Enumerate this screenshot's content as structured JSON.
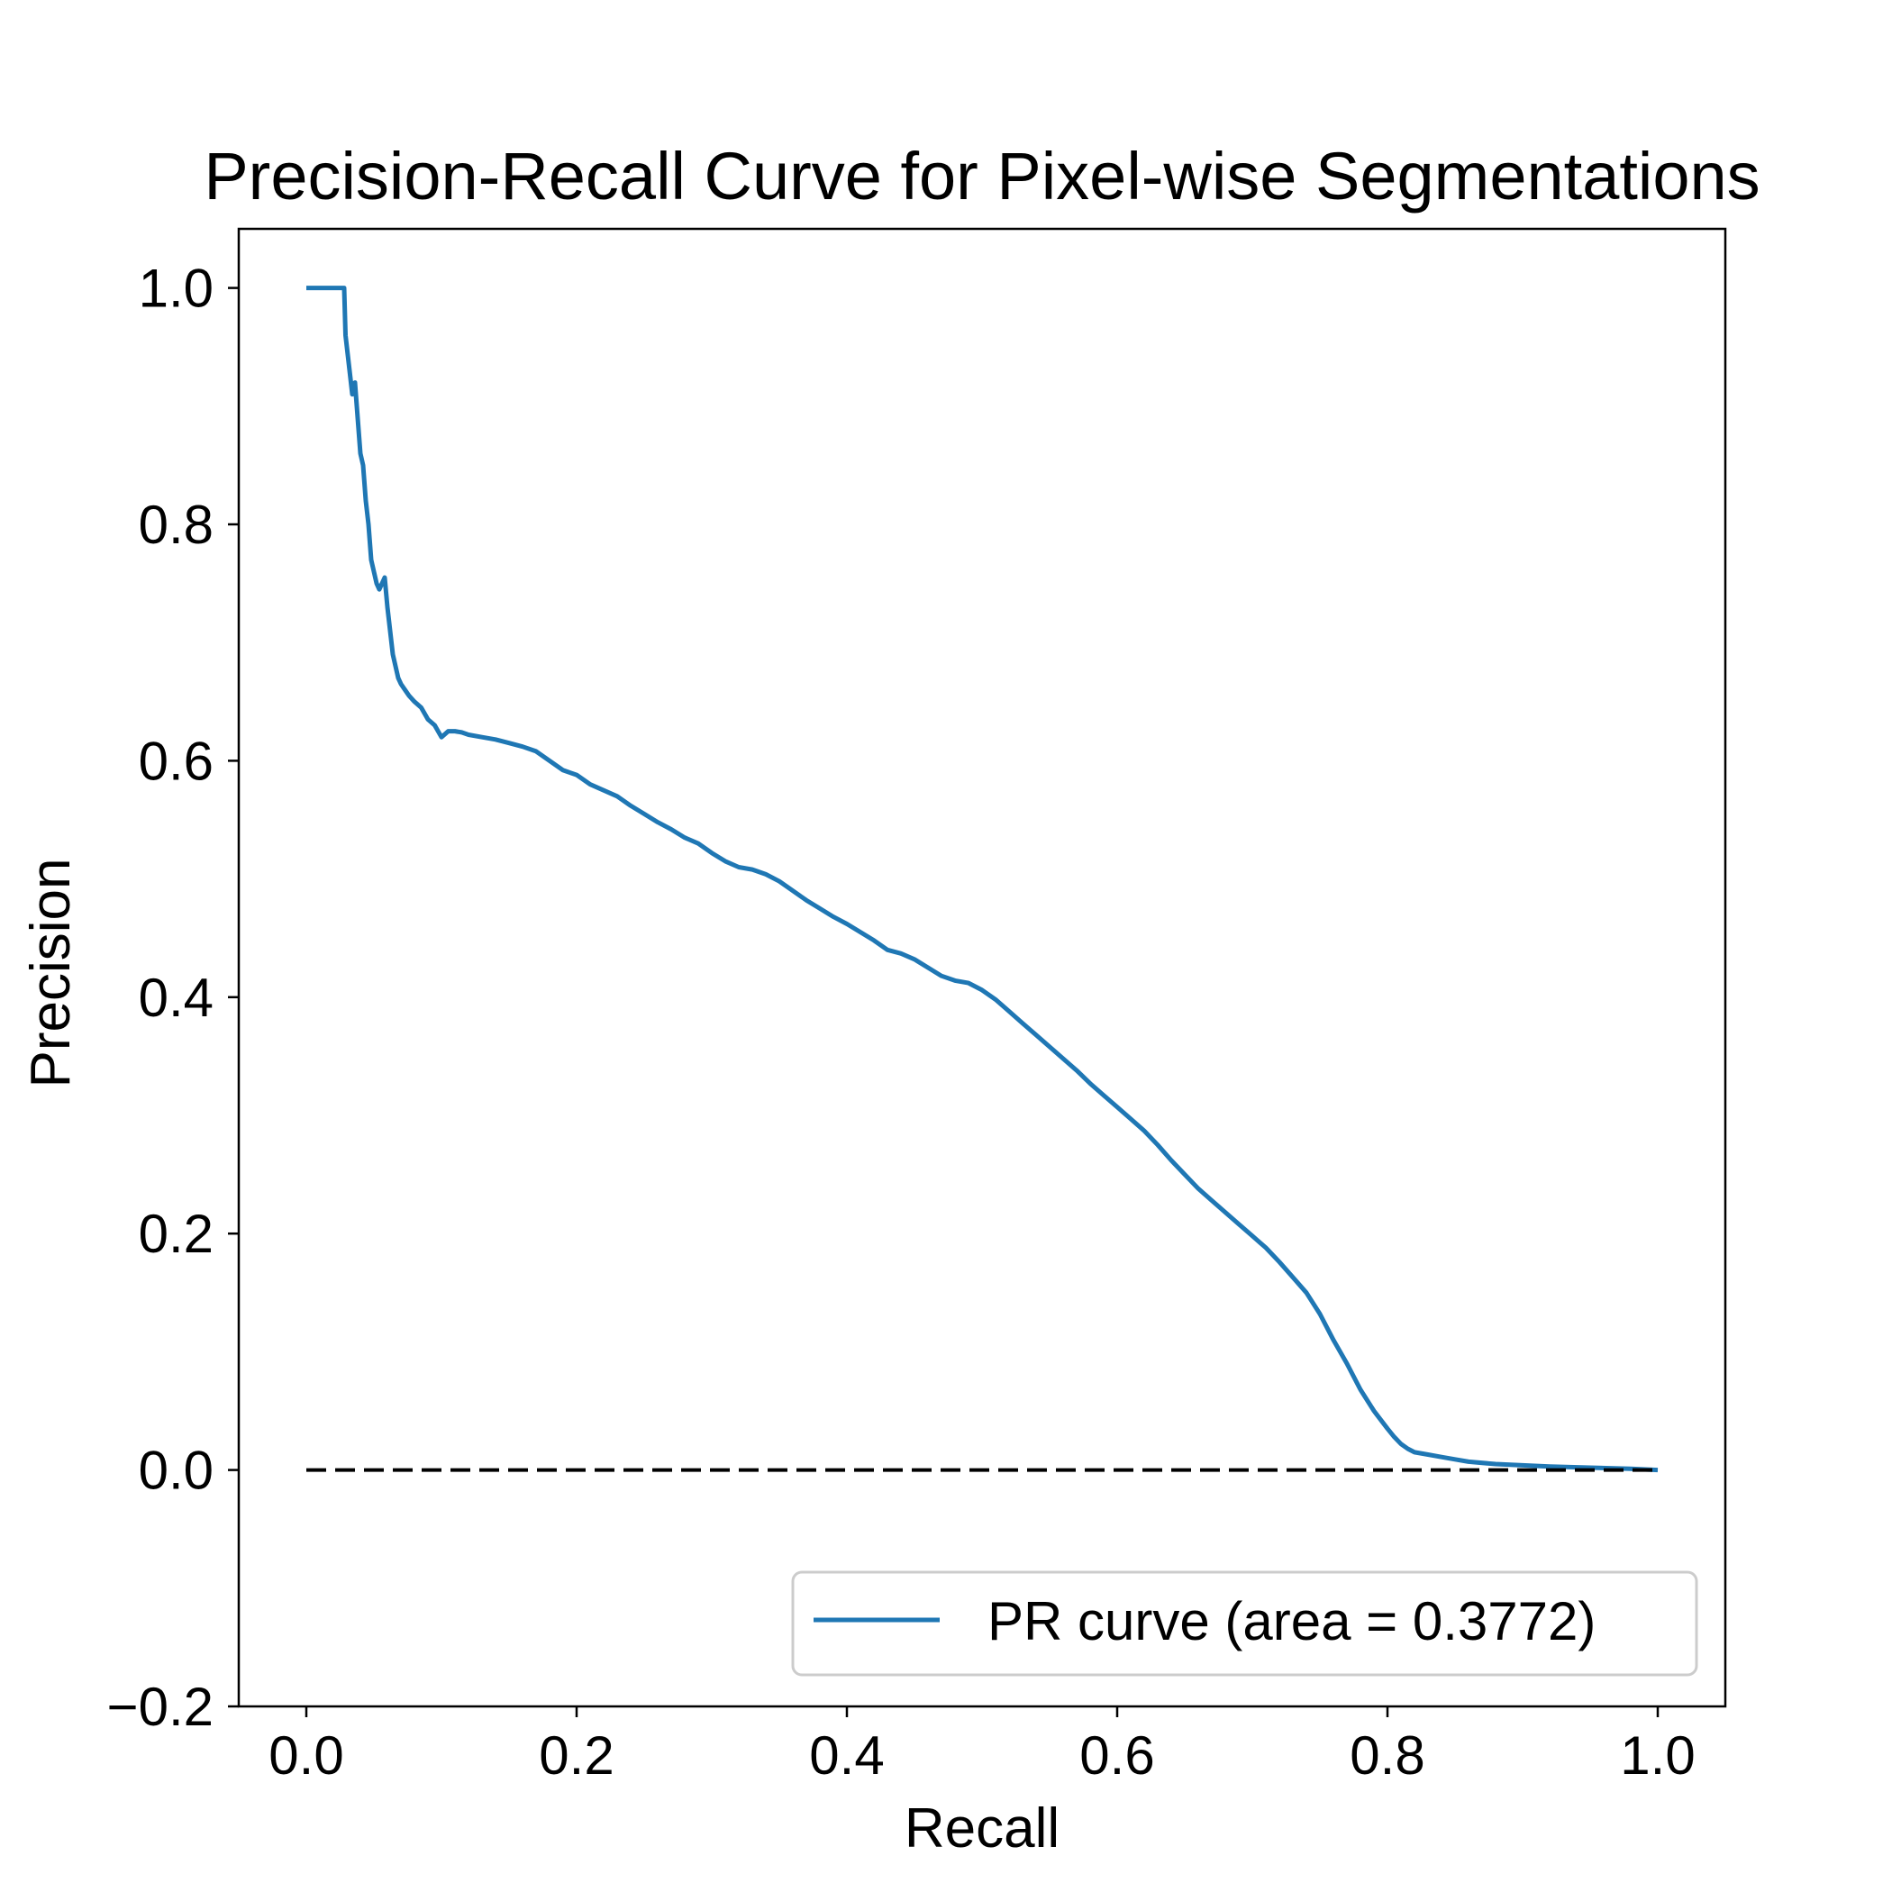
{
  "chart_data": {
    "type": "line",
    "title": "Precision-Recall Curve for Pixel-wise Segmentations",
    "xlabel": "Recall",
    "ylabel": "Precision",
    "xlim": [
      -0.05,
      1.05
    ],
    "ylim": [
      -0.2,
      1.05
    ],
    "xticks": [
      0.0,
      0.2,
      0.4,
      0.6,
      0.8,
      1.0
    ],
    "xtick_labels": [
      "0.0",
      "0.2",
      "0.4",
      "0.6",
      "0.8",
      "1.0"
    ],
    "yticks": [
      -0.2,
      0.0,
      0.2,
      0.4,
      0.6,
      0.8,
      1.0
    ],
    "ytick_labels": [
      "−0.2",
      "0.0",
      "0.2",
      "0.4",
      "0.6",
      "0.8",
      "1.0"
    ],
    "grid": false,
    "legend_position": "lower-right",
    "series": [
      {
        "name": "PR curve (area = 0.3772)",
        "color": "#1f77b4",
        "style": "solid",
        "x": [
          0.0,
          0.028,
          0.029,
          0.03,
          0.032,
          0.034,
          0.036,
          0.038,
          0.04,
          0.042,
          0.044,
          0.046,
          0.048,
          0.05,
          0.052,
          0.054,
          0.056,
          0.058,
          0.06,
          0.062,
          0.064,
          0.066,
          0.068,
          0.07,
          0.073,
          0.076,
          0.08,
          0.085,
          0.09,
          0.095,
          0.1,
          0.105,
          0.11,
          0.115,
          0.12,
          0.13,
          0.14,
          0.15,
          0.16,
          0.17,
          0.18,
          0.19,
          0.2,
          0.21,
          0.22,
          0.23,
          0.24,
          0.25,
          0.26,
          0.27,
          0.28,
          0.29,
          0.3,
          0.31,
          0.32,
          0.33,
          0.34,
          0.35,
          0.36,
          0.37,
          0.38,
          0.39,
          0.4,
          0.41,
          0.42,
          0.43,
          0.44,
          0.45,
          0.46,
          0.47,
          0.48,
          0.49,
          0.5,
          0.51,
          0.52,
          0.53,
          0.54,
          0.55,
          0.56,
          0.57,
          0.58,
          0.59,
          0.6,
          0.61,
          0.62,
          0.63,
          0.64,
          0.65,
          0.66,
          0.67,
          0.68,
          0.69,
          0.7,
          0.71,
          0.72,
          0.73,
          0.74,
          0.75,
          0.76,
          0.77,
          0.78,
          0.79,
          0.8,
          0.805,
          0.81,
          0.815,
          0.82,
          0.83,
          0.84,
          0.85,
          0.86,
          0.88,
          0.9,
          0.92,
          0.95,
          0.98,
          1.0
        ],
        "y": [
          1.0,
          1.0,
          0.96,
          0.95,
          0.93,
          0.91,
          0.92,
          0.89,
          0.86,
          0.85,
          0.82,
          0.8,
          0.77,
          0.76,
          0.75,
          0.745,
          0.75,
          0.755,
          0.73,
          0.71,
          0.69,
          0.68,
          0.67,
          0.665,
          0.66,
          0.655,
          0.65,
          0.645,
          0.635,
          0.63,
          0.62,
          0.625,
          0.625,
          0.624,
          0.622,
          0.62,
          0.618,
          0.615,
          0.612,
          0.608,
          0.6,
          0.592,
          0.588,
          0.58,
          0.575,
          0.57,
          0.562,
          0.555,
          0.548,
          0.542,
          0.535,
          0.53,
          0.522,
          0.515,
          0.51,
          0.508,
          0.504,
          0.498,
          0.49,
          0.482,
          0.475,
          0.468,
          0.462,
          0.455,
          0.448,
          0.44,
          0.437,
          0.432,
          0.425,
          0.418,
          0.414,
          0.412,
          0.406,
          0.398,
          0.388,
          0.378,
          0.368,
          0.358,
          0.348,
          0.338,
          0.327,
          0.317,
          0.307,
          0.297,
          0.287,
          0.275,
          0.262,
          0.25,
          0.238,
          0.228,
          0.218,
          0.208,
          0.198,
          0.188,
          0.176,
          0.163,
          0.15,
          0.132,
          0.11,
          0.09,
          0.068,
          0.05,
          0.035,
          0.028,
          0.022,
          0.018,
          0.015,
          0.013,
          0.011,
          0.009,
          0.007,
          0.005,
          0.004,
          0.003,
          0.002,
          0.001,
          0.0
        ]
      },
      {
        "color": "#000000",
        "style": "dashed",
        "x": [
          0.0,
          1.0
        ],
        "y": [
          0.0,
          0.0
        ]
      }
    ]
  }
}
